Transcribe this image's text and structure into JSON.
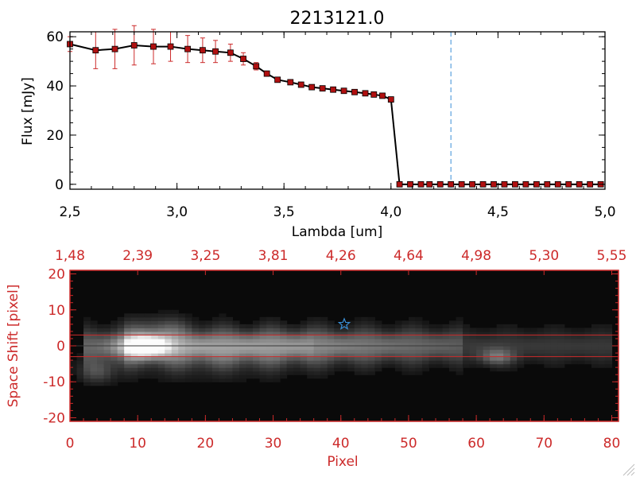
{
  "chart_data": [
    {
      "type": "line",
      "title": "2213121.0",
      "xlabel": "Lambda [um]",
      "ylabel": "Flux [mJy]",
      "xlim": [
        2.5,
        5.0
      ],
      "ylim": [
        -2,
        62
      ],
      "xticks": [
        "2.5",
        "3.0",
        "3.5",
        "4.0",
        "4.5",
        "5.0"
      ],
      "yticks": [
        "0",
        "20",
        "40",
        "60"
      ],
      "reference_line": {
        "x": 4.28,
        "style": "dashed",
        "color": "#3a8fd6"
      },
      "series_color": "#000000",
      "marker_color": "#b01010",
      "errorbar_color": "#cc2a2a",
      "series": [
        {
          "x": [
            2.5,
            2.62,
            2.71,
            2.8,
            2.89,
            2.97,
            3.05,
            3.12,
            3.18,
            3.25,
            3.31,
            3.37,
            3.42,
            3.47,
            3.53,
            3.58,
            3.63,
            3.68,
            3.73,
            3.78,
            3.83,
            3.88,
            3.92,
            3.96,
            4.0,
            4.04,
            4.09,
            4.14,
            4.18,
            4.23,
            4.28,
            4.33,
            4.38,
            4.43,
            4.48,
            4.53,
            4.58,
            4.63,
            4.68,
            4.73,
            4.78,
            4.83,
            4.88,
            4.93,
            4.98
          ],
          "y": [
            57,
            54.5,
            55,
            56.5,
            56,
            56,
            55,
            54.5,
            54,
            53.5,
            51,
            48,
            45,
            42.5,
            41.5,
            40.5,
            39.5,
            39,
            38.5,
            38,
            37.5,
            37,
            36.5,
            36,
            34.5,
            0,
            0,
            0,
            0,
            0,
            0,
            0,
            0,
            0,
            0,
            0,
            0,
            0,
            0,
            0,
            0,
            0,
            0,
            0,
            0
          ],
          "yerr": [
            3,
            7.5,
            8,
            8,
            7,
            6,
            5.5,
            5,
            4.5,
            3.5,
            2.5,
            1.5,
            1,
            1,
            0.8,
            0.8,
            0.6,
            0.6,
            0.6,
            0.6,
            0.5,
            0.5,
            0.5,
            0.5,
            0.5,
            0,
            0,
            0,
            0,
            0,
            0,
            0,
            0,
            0,
            0,
            0,
            0,
            0,
            0,
            0,
            0,
            0,
            0,
            0,
            0
          ]
        }
      ]
    },
    {
      "type": "heatmap",
      "xlabel": "Pixel",
      "ylabel": "Space Shift [pixel]",
      "xlim": [
        0,
        81
      ],
      "ylim": [
        -21,
        21
      ],
      "xticks": [
        "0",
        "10",
        "20",
        "30",
        "40",
        "50",
        "60",
        "70",
        "80"
      ],
      "yticks": [
        "-20",
        "-10",
        "0",
        "10",
        "20"
      ],
      "top_axis_ticks": [
        "1.48",
        "2.39",
        "3.25",
        "3.81",
        "4.26",
        "4.64",
        "4.98",
        "5.30",
        "5.55"
      ],
      "extraction_window": [
        -3,
        3
      ],
      "trace_center": 0,
      "source_marker": {
        "shape": "star",
        "x": 40.5,
        "y": 6,
        "color": "#3a8fd6"
      },
      "colormap": "grayscale",
      "frame_color": "#cc2a2a"
    }
  ]
}
